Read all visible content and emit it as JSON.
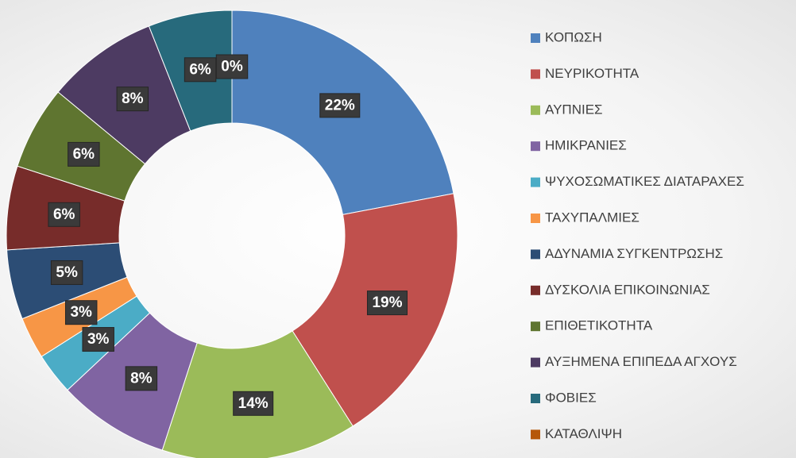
{
  "chart_data": {
    "type": "donut",
    "categories": [
      "ΚΟΠΩΣΗ",
      "ΝΕΥΡΙΚΟΤΗΤΑ",
      "ΑΥΠΝΙΕΣ",
      "ΗΜΙΚΡΑΝΙΕΣ",
      "ΨΥΧΟΣΩΜΑΤΙΚΕΣ ΔΙΑΤΑΡΑΧΕΣ",
      "ΤΑΧΥΠΑΛΜΙΕΣ",
      "ΑΔΥΝΑΜΙΑ ΣΥΓΚΕΝΤΡΩΣΗΣ",
      "ΔΥΣΚΟΛΙΑ ΕΠΙΚΟΙΝΩΝΙΑΣ",
      "ΕΠΙΘΕΤΙΚΟΤΗΤΑ",
      "ΑΥΞΗΜΕΝΑ ΕΠΙΠΕΔΑ ΑΓΧΟΥΣ",
      "ΦΟΒΙΕΣ",
      "ΚΑΤΑΘΛΙΨΗ"
    ],
    "values": [
      22,
      19,
      14,
      8,
      3,
      3,
      5,
      6,
      6,
      8,
      6,
      0
    ],
    "value_labels": [
      "22%",
      "19%",
      "14%",
      "8%",
      "3%",
      "3%",
      "5%",
      "6%",
      "6%",
      "8%",
      "6%",
      "0%"
    ],
    "colors": [
      "#4f81bd",
      "#c0504d",
      "#9bbb59",
      "#8064a2",
      "#4bacc6",
      "#f79646",
      "#2c4d75",
      "#772c2a",
      "#5f7530",
      "#4d3b62",
      "#276a7c",
      "#b65708"
    ],
    "legend": "right"
  }
}
